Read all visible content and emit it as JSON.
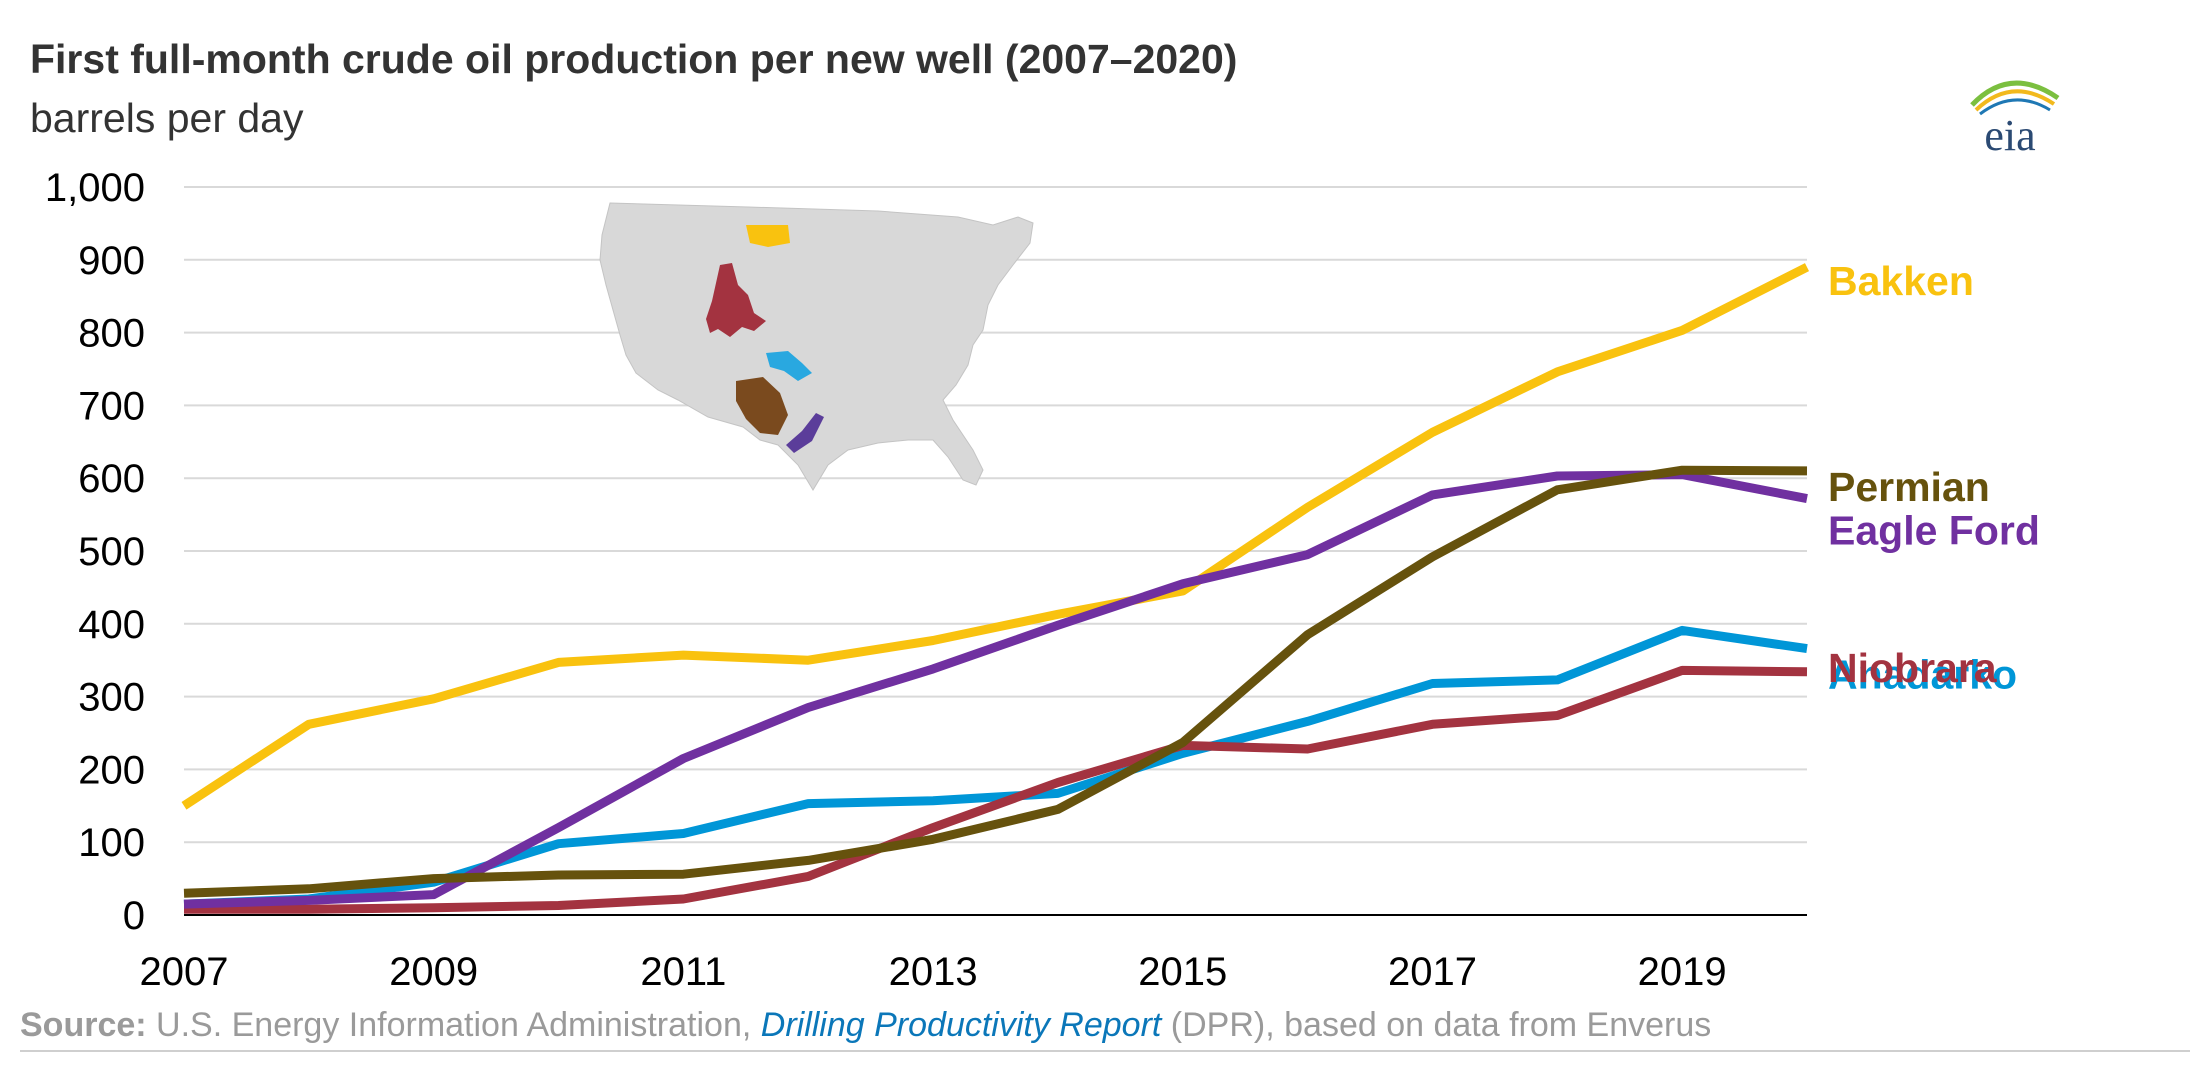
{
  "title": "First full-month crude oil production per new well (2007–2020)",
  "subtitle": "barrels per day",
  "logo_text": "eia",
  "source": {
    "label": "Source:",
    "text1": " U.S. Energy Information Administration, ",
    "link": "Drilling Productivity Report",
    "text2": " (DPR), based on data from Enverus"
  },
  "map_icon": "us-map-with-shale-regions",
  "chart_data": {
    "type": "line",
    "title": "First full-month crude oil production per new well (2007–2020)",
    "ylabel": "barrels per day",
    "xlim": [
      2007,
      2020
    ],
    "ylim": [
      0,
      1000
    ],
    "x": [
      2007,
      2008,
      2009,
      2010,
      2011,
      2012,
      2013,
      2014,
      2015,
      2016,
      2017,
      2018,
      2019,
      2020
    ],
    "x_ticks": [
      "2007",
      "2009",
      "2011",
      "2013",
      "2015",
      "2017",
      "2019"
    ],
    "x_tick_values": [
      2007,
      2009,
      2011,
      2013,
      2015,
      2017,
      2019
    ],
    "y_ticks": [
      "0",
      "100",
      "200",
      "300",
      "400",
      "500",
      "600",
      "700",
      "800",
      "900",
      "1,000"
    ],
    "y_tick_values": [
      0,
      100,
      200,
      300,
      400,
      500,
      600,
      700,
      800,
      900,
      1000
    ],
    "grid": true,
    "legend": "right, labels at line ends",
    "series": [
      {
        "name": "Bakken",
        "color": "#f9c20f",
        "values": [
          150,
          262,
          297,
          347,
          357,
          350,
          377,
          413,
          445,
          560,
          663,
          746,
          803,
          890
        ]
      },
      {
        "name": "Permian",
        "color": "#66520d",
        "values": [
          30,
          36,
          50,
          55,
          56,
          75,
          104,
          145,
          237,
          385,
          492,
          584,
          611,
          610
        ]
      },
      {
        "name": "Eagle Ford",
        "color": "#7030a0",
        "values": [
          15,
          20,
          28,
          120,
          215,
          285,
          338,
          398,
          455,
          495,
          577,
          603,
          605,
          572
        ]
      },
      {
        "name": "Anadarko",
        "color": "#0096d7",
        "values": [
          15,
          22,
          45,
          98,
          112,
          153,
          157,
          167,
          222,
          266,
          318,
          323,
          391,
          366
        ]
      },
      {
        "name": "Niobrara",
        "color": "#a33340",
        "values": [
          8,
          8,
          10,
          13,
          22,
          53,
          120,
          182,
          233,
          228,
          262,
          274,
          336,
          334
        ]
      }
    ]
  }
}
